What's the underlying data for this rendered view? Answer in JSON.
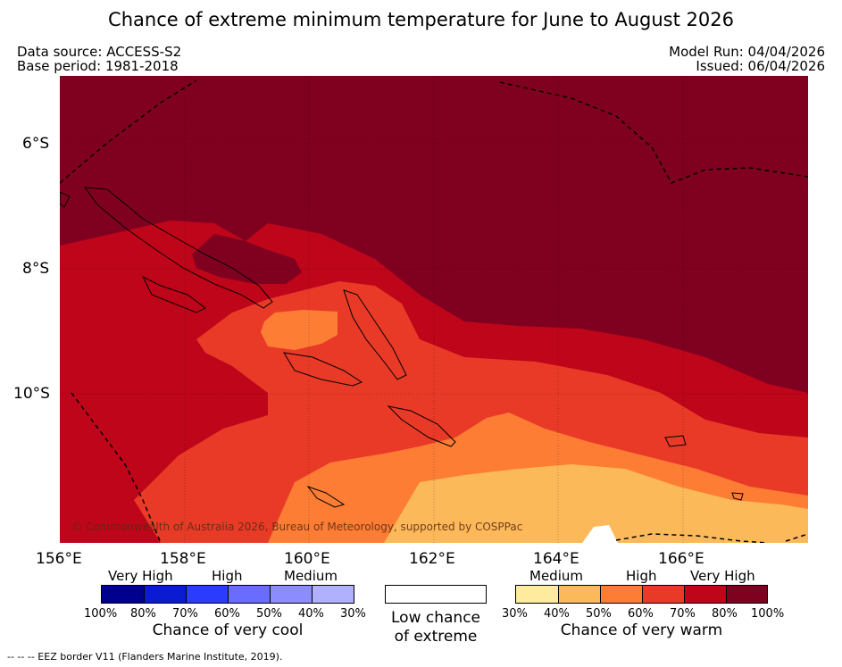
{
  "title": "Chance of extreme minimum temperature for June to August 2026",
  "meta": {
    "data_source": "Data source: ACCESS-S2",
    "base_period": "Base period: 1981-2018",
    "model_run": "Model Run: 04/04/2026",
    "issued": "Issued: 06/04/2026"
  },
  "map": {
    "lat_labels": [
      "6°S",
      "8°S",
      "10°S"
    ],
    "lon_labels": [
      "156°E",
      "158°E",
      "160°E",
      "162°E",
      "164°E",
      "166°E"
    ],
    "copyright": "© Commonwealth of Australia 2026, Bureau of Meteorology, supported by COSPPac"
  },
  "legend": {
    "cool": {
      "headings": [
        "Very High",
        "High",
        "Medium"
      ],
      "ticks": [
        "100%",
        "80%",
        "70%",
        "60%",
        "50%",
        "40%",
        "30%"
      ],
      "colors": [
        "#00008f",
        "#0a1bd2",
        "#2c3cff",
        "#6a6cff",
        "#8c8cff",
        "#b0b0ff"
      ],
      "caption": "Chance of very cool"
    },
    "neutral": {
      "caption_line1": "Low chance",
      "caption_line2": "of extreme",
      "color": "#ffffff"
    },
    "warm": {
      "headings": [
        "Medium",
        "High",
        "Very High"
      ],
      "ticks": [
        "30%",
        "40%",
        "50%",
        "60%",
        "70%",
        "80%",
        "100%"
      ],
      "colors": [
        "#feeb9d",
        "#fcb95a",
        "#fd7d34",
        "#e93a28",
        "#bf0519",
        "#800020"
      ],
      "caption": "Chance of very warm"
    }
  },
  "footnote": "--  --  -- EEZ border V11 (Flanders Marine Institute, 2019)."
}
